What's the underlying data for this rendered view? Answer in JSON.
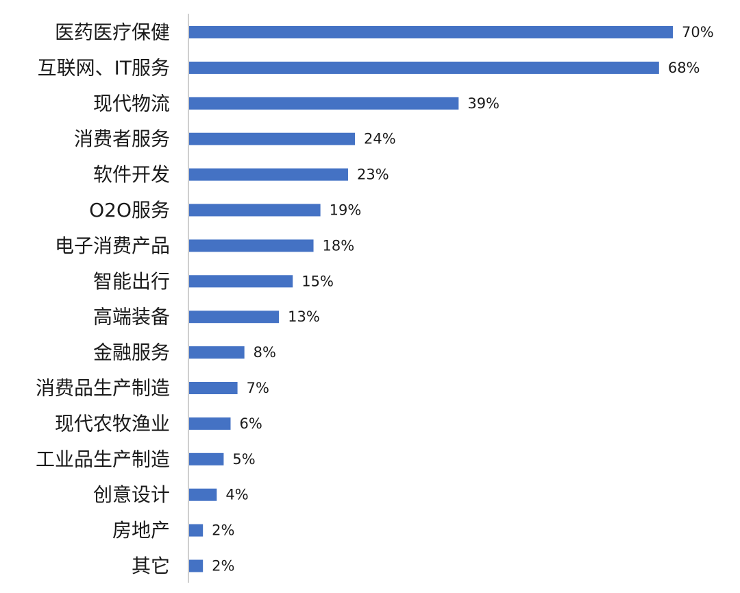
{
  "chart_data": {
    "type": "bar",
    "orientation": "horizontal",
    "categories": [
      "医药医疗保健",
      "互联网、IT服务",
      "现代物流",
      "消费者服务",
      "软件开发",
      "O2O服务",
      "电子消费产品",
      "智能出行",
      "高端装备",
      "金融服务",
      "消费品生产制造",
      "现代农牧渔业",
      "工业品生产制造",
      "创意设计",
      "房地产",
      "其它"
    ],
    "values": [
      70,
      68,
      39,
      24,
      23,
      19,
      18,
      15,
      13,
      8,
      7,
      6,
      5,
      4,
      2,
      2
    ],
    "value_labels": [
      "70%",
      "68%",
      "39%",
      "24%",
      "23%",
      "19%",
      "18%",
      "15%",
      "13%",
      "8%",
      "7%",
      "6%",
      "5%",
      "4%",
      "2%",
      "2%"
    ],
    "unit": "%",
    "xlim": [
      0,
      70
    ],
    "grid": false,
    "legend": "none",
    "bar_color": "#4472C4",
    "axis_color": "#BFBFBF"
  }
}
